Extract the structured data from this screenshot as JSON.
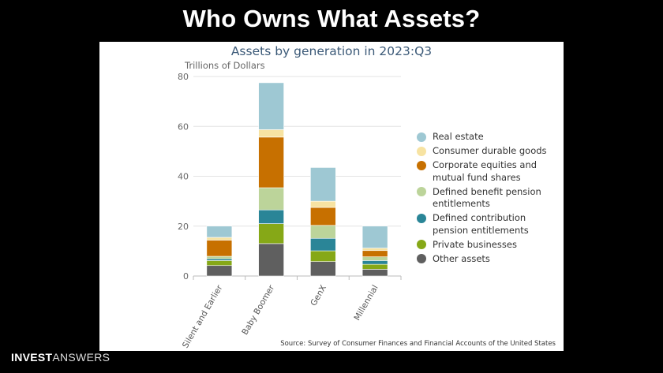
{
  "slide": {
    "title": "Who Owns What Assets?",
    "brand_bold": "INVEST",
    "brand_light": "ANSWERS"
  },
  "chart_data": {
    "type": "bar",
    "stacked": true,
    "title": "Assets by generation in 2023:Q3",
    "ylabel": "Trillions of Dollars",
    "xlabel": "",
    "ylim": [
      0,
      80
    ],
    "yticks": [
      0,
      20,
      40,
      60,
      80
    ],
    "grid": true,
    "legend_position": "right",
    "categories": [
      "Silent and Earlier",
      "Baby Boomer",
      "GenX",
      "Millennial"
    ],
    "series": [
      {
        "name": "Other assets",
        "color": "#5f5f5f",
        "values": [
          4.2,
          13.0,
          5.8,
          2.7
        ]
      },
      {
        "name": "Private businesses",
        "color": "#86a817",
        "values": [
          2.0,
          8.0,
          4.3,
          2.0
        ]
      },
      {
        "name": "Defined contribution pension entitlements",
        "color": "#2a8597",
        "values": [
          0.7,
          5.5,
          5.0,
          1.5
        ]
      },
      {
        "name": "Defined benefit pension entitlements",
        "color": "#bcd49a",
        "values": [
          1.0,
          8.9,
          5.2,
          1.5
        ]
      },
      {
        "name": "Corporate equities and mutual fund shares",
        "color": "#c77000",
        "values": [
          6.5,
          20.3,
          7.2,
          2.5
        ]
      },
      {
        "name": "Consumer durable goods",
        "color": "#f7e3a2",
        "values": [
          1.1,
          3.0,
          2.5,
          1.0
        ]
      },
      {
        "name": "Real estate",
        "color": "#9ec8d3",
        "values": [
          4.5,
          18.8,
          13.5,
          8.8
        ]
      }
    ],
    "legend_order": [
      "Real estate",
      "Consumer durable goods",
      "Corporate equities and mutual fund shares",
      "Defined benefit pension entitlements",
      "Defined contribution pension entitlements",
      "Private businesses",
      "Other assets"
    ],
    "legend_labels": [
      [
        "Real estate"
      ],
      [
        "Consumer durable goods"
      ],
      [
        "Corporate equities and",
        "mutual fund shares"
      ],
      [
        "Defined benefit pension",
        "entitlements"
      ],
      [
        "Defined contribution",
        "pension entitlements"
      ],
      [
        "Private businesses"
      ],
      [
        "Other assets"
      ]
    ],
    "source": "Source: Survey of Consumer Finances and Financial Accounts of the United States"
  }
}
